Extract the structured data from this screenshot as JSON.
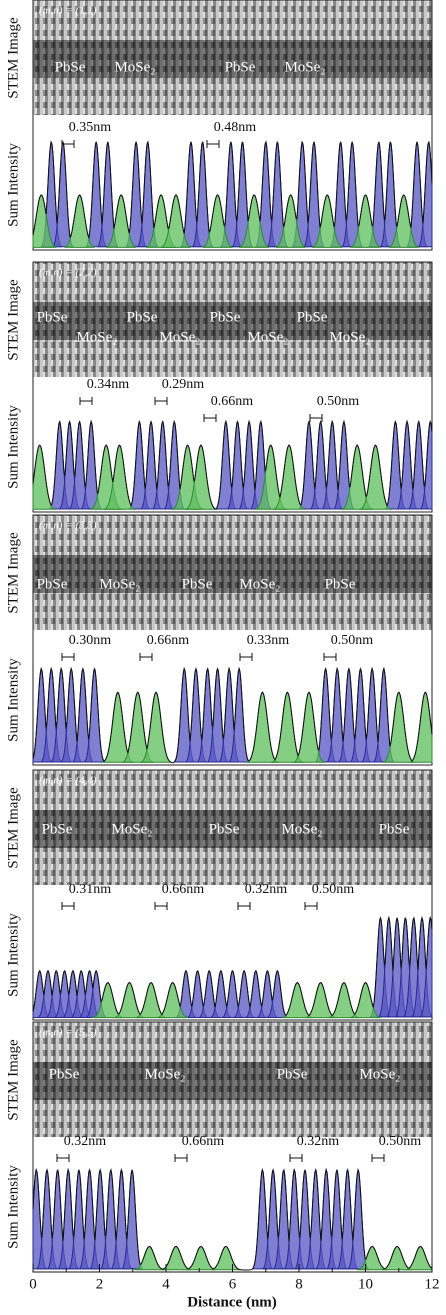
{
  "image_axis_label": "STEM Image",
  "intensity_axis_label": "Sum Intensity",
  "x_axis": {
    "title": "Distance (nm)",
    "xlim": [
      0,
      12
    ],
    "xticks": [
      0,
      2,
      4,
      6,
      8,
      10,
      12
    ]
  },
  "panels": [
    {
      "label": "(m,n) = (1,1)",
      "image_labels": [
        "PbSe",
        "MoSe₂",
        "PbSe",
        "MoSe₂"
      ],
      "annotations": [
        "0.35nm",
        "0.48nm"
      ],
      "peaks": [
        {
          "color": "#5555c4",
          "height": 0.9,
          "x": [
            0.55,
            0.9,
            1.9,
            2.25,
            3.1,
            3.45,
            4.75,
            5.1,
            5.95,
            6.3,
            7.0,
            7.35,
            8.1,
            8.45,
            9.25,
            9.6,
            10.4,
            10.75,
            11.55,
            11.9
          ]
        },
        {
          "color": "#5cbf5c",
          "height": 0.45,
          "x": [
            0.25,
            1.4,
            2.65,
            3.85,
            4.3,
            5.55,
            6.65,
            7.75,
            8.85,
            10.0,
            11.15
          ]
        }
      ]
    },
    {
      "label": "(m,n) = (2,2)",
      "image_labels": [
        "PbSe",
        "MoSe₂",
        "PbSe",
        "MoSe₂",
        "PbSe",
        "MoSe₂",
        "PbSe",
        "MoSe₂"
      ],
      "annotations": [
        "0.34nm",
        "0.29nm",
        "0.66nm",
        "0.50nm"
      ],
      "peaks": [
        {
          "color": "#5555c4",
          "height": 0.75,
          "x": [
            0.8,
            1.1,
            1.4,
            1.75,
            3.2,
            3.55,
            3.9,
            4.25,
            5.8,
            6.15,
            6.5,
            6.85,
            8.3,
            8.65,
            9.0,
            9.35,
            10.9,
            11.25,
            11.6,
            11.95
          ]
        },
        {
          "color": "#5cbf5c",
          "height": 0.55,
          "x": [
            0.2,
            2.2,
            2.6,
            4.65,
            5.05,
            7.15,
            7.7,
            9.75,
            10.3
          ]
        }
      ]
    },
    {
      "label": "(m,n) = (3,3)",
      "image_labels": [
        "PbSe",
        "MoSe₂",
        "PbSe",
        "MoSe₂",
        "PbSe"
      ],
      "annotations": [
        "0.30nm",
        "0.66nm",
        "0.33nm",
        "0.50nm"
      ],
      "peaks": [
        {
          "color": "#5555c4",
          "height": 0.8,
          "x": [
            0.25,
            0.55,
            0.85,
            1.15,
            1.5,
            1.85,
            4.55,
            4.9,
            5.25,
            5.55,
            5.9,
            6.2,
            8.8,
            9.15,
            9.5,
            9.85,
            10.2,
            10.55
          ]
        },
        {
          "color": "#5cbf5c",
          "height": 0.6,
          "x": [
            2.55,
            3.15,
            3.7,
            6.9,
            7.65,
            8.3,
            11.0,
            11.8
          ]
        }
      ]
    },
    {
      "label": "(m,n) = (4,4)",
      "image_labels": [
        "PbSe",
        "MoSe₂",
        "PbSe",
        "MoSe₂",
        "PbSe"
      ],
      "annotations": [
        "0.31nm",
        "0.66nm",
        "0.32nm",
        "0.50nm"
      ],
      "peaks": [
        {
          "color": "#5555c4",
          "height": 0.4,
          "x": [
            0.2,
            0.45,
            0.7,
            0.95,
            1.2,
            1.45,
            1.7,
            1.9,
            4.6,
            4.95,
            5.3,
            5.65,
            6.0,
            6.35,
            6.7,
            7.05,
            7.35
          ]
        },
        {
          "color": "#5555c4",
          "height": 0.85,
          "x": [
            10.45,
            10.7,
            10.95,
            11.2,
            11.45,
            11.7,
            11.95
          ]
        },
        {
          "color": "#5cbf5c",
          "height": 0.3,
          "x": [
            2.25,
            2.9,
            3.55,
            4.2,
            7.95,
            8.65,
            9.35,
            10.0
          ]
        }
      ]
    },
    {
      "label": "(m,n) = (5,5)",
      "image_labels": [
        "PbSe",
        "MoSe₂",
        "PbSe",
        "MoSe₂"
      ],
      "annotations": [
        "0.32nm",
        "0.66nm",
        "0.32nm",
        "0.50nm"
      ],
      "peaks": [
        {
          "color": "#5555c4",
          "height": 0.85,
          "x": [
            0.1,
            0.42,
            0.74,
            1.06,
            1.38,
            1.7,
            2.02,
            2.34,
            2.66,
            2.98,
            6.9,
            7.22,
            7.54,
            7.86,
            8.18,
            8.5,
            8.82,
            9.14,
            9.46,
            9.78
          ]
        },
        {
          "color": "#5cbf5c",
          "height": 0.2,
          "x": [
            3.5,
            4.3,
            5.05,
            5.8,
            10.2,
            10.95,
            11.65
          ]
        }
      ]
    }
  ]
}
